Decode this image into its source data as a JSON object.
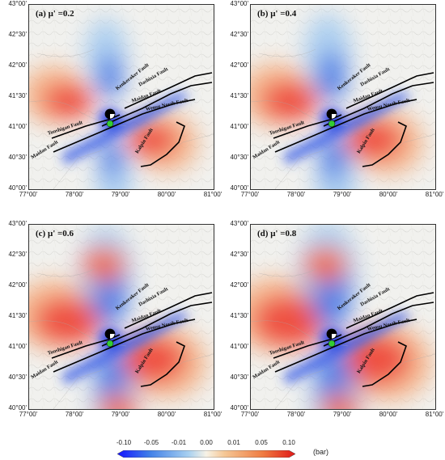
{
  "panels": [
    {
      "label": "(a)  μ' =0.2"
    },
    {
      "label": "(b)  μ' =0.4"
    },
    {
      "label": "(c)  μ' =0.6"
    },
    {
      "label": "(d)  μ' =0.8"
    }
  ],
  "lat_labels": [
    "43°00'",
    "42°30'",
    "42°00'",
    "41°30'",
    "41°00'",
    "40°30'",
    "40°00'"
  ],
  "lon_labels": [
    "77°00'",
    "78°00'",
    "79°00'",
    "80°00'",
    "81°00'"
  ],
  "faults": {
    "kenkeraker": "Kenkeraker Fault",
    "dashixia": "Dashixia Fault",
    "maidan_east": "Maidan Fault",
    "wensu": "Wensu North Fault",
    "tuoshigan": "Tuoshigan Fault",
    "maidan_west": "Maidan Fault",
    "kalpin": "Kalpin Fault"
  },
  "colorbar": {
    "ticks": [
      "-0.10",
      "-0.05",
      "-0.01",
      "0.00",
      "0.01",
      "0.05",
      "0.10"
    ],
    "unit": "(bar)",
    "colors": [
      "#1a1aff",
      "#3f7fe8",
      "#9cc8ef",
      "#f7f2e6",
      "#f6c79a",
      "#f07d45",
      "#e81f1f"
    ]
  }
}
